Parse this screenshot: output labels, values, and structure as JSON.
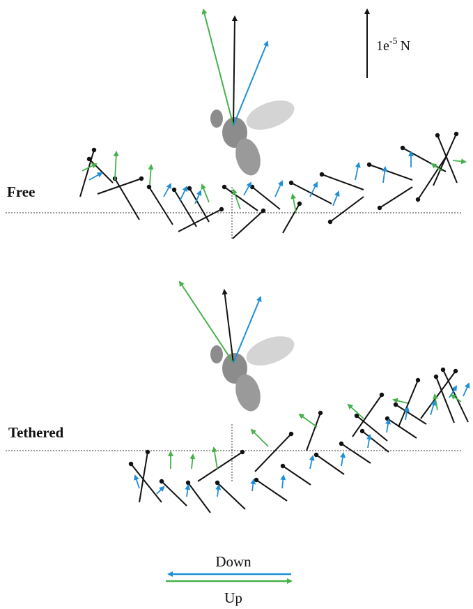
{
  "scale_bar": {
    "mantissa": "1e",
    "exponent": "-5",
    "unit": "N"
  },
  "panels": [
    {
      "label": "Free"
    },
    {
      "label": "Tethered"
    }
  ],
  "legend": [
    {
      "label": "Down"
    },
    {
      "label": "Up"
    }
  ]
}
